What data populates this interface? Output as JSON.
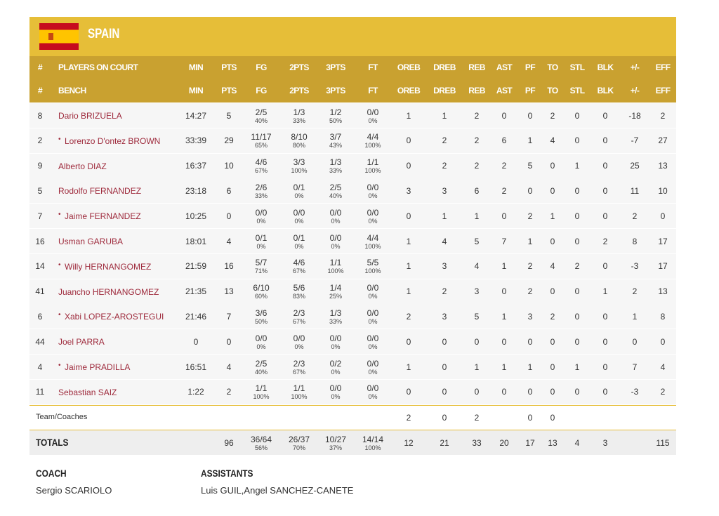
{
  "team": {
    "name": "SPAIN"
  },
  "header_rows": [
    {
      "num": "#",
      "name": "PLAYERS ON COURT",
      "min": "MIN",
      "pts": "PTS",
      "fg": "FG",
      "p2": "2PTS",
      "p3": "3PTS",
      "ft": "FT",
      "oreb": "OREB",
      "dreb": "DREB",
      "reb": "REB",
      "ast": "AST",
      "pf": "PF",
      "to": "TO",
      "stl": "STL",
      "blk": "BLK",
      "pm": "+/-",
      "eff": "EFF"
    },
    {
      "num": "#",
      "name": "BENCH",
      "min": "MIN",
      "pts": "PTS",
      "fg": "FG",
      "p2": "2PTS",
      "p3": "3PTS",
      "ft": "FT",
      "oreb": "OREB",
      "dreb": "DREB",
      "reb": "REB",
      "ast": "AST",
      "pf": "PF",
      "to": "TO",
      "stl": "STL",
      "blk": "BLK",
      "pm": "+/-",
      "eff": "EFF"
    }
  ],
  "players": [
    {
      "num": "8",
      "name": "Dario BRIZUELA",
      "min": "14:27",
      "pts": "5",
      "fg": {
        "made": "2/5",
        "pct": "40%"
      },
      "p2": {
        "made": "1/3",
        "pct": "33%"
      },
      "p3": {
        "made": "1/2",
        "pct": "50%"
      },
      "ft": {
        "made": "0/0",
        "pct": "0%"
      },
      "oreb": "1",
      "dreb": "1",
      "reb": "2",
      "ast": "0",
      "pf": "0",
      "to": "2",
      "stl": "0",
      "blk": "0",
      "pm": "-18",
      "eff": "2"
    },
    {
      "num": "2",
      "starter": "•",
      "name": "Lorenzo D'ontez BROWN",
      "min": "33:39",
      "pts": "29",
      "fg": {
        "made": "11/17",
        "pct": "65%"
      },
      "p2": {
        "made": "8/10",
        "pct": "80%"
      },
      "p3": {
        "made": "3/7",
        "pct": "43%"
      },
      "ft": {
        "made": "4/4",
        "pct": "100%"
      },
      "oreb": "0",
      "dreb": "2",
      "reb": "2",
      "ast": "6",
      "pf": "1",
      "to": "4",
      "stl": "0",
      "blk": "0",
      "pm": "-7",
      "eff": "27"
    },
    {
      "num": "9",
      "name": "Alberto DIAZ",
      "min": "16:37",
      "pts": "10",
      "fg": {
        "made": "4/6",
        "pct": "67%"
      },
      "p2": {
        "made": "3/3",
        "pct": "100%"
      },
      "p3": {
        "made": "1/3",
        "pct": "33%"
      },
      "ft": {
        "made": "1/1",
        "pct": "100%"
      },
      "oreb": "0",
      "dreb": "2",
      "reb": "2",
      "ast": "2",
      "pf": "5",
      "to": "0",
      "stl": "1",
      "blk": "0",
      "pm": "25",
      "eff": "13"
    },
    {
      "num": "5",
      "name": "Rodolfo FERNANDEZ",
      "min": "23:18",
      "pts": "6",
      "fg": {
        "made": "2/6",
        "pct": "33%"
      },
      "p2": {
        "made": "0/1",
        "pct": "0%"
      },
      "p3": {
        "made": "2/5",
        "pct": "40%"
      },
      "ft": {
        "made": "0/0",
        "pct": "0%"
      },
      "oreb": "3",
      "dreb": "3",
      "reb": "6",
      "ast": "2",
      "pf": "0",
      "to": "0",
      "stl": "0",
      "blk": "0",
      "pm": "11",
      "eff": "10"
    },
    {
      "num": "7",
      "starter": "•",
      "name": "Jaime FERNANDEZ",
      "min": "10:25",
      "pts": "0",
      "fg": {
        "made": "0/0",
        "pct": "0%"
      },
      "p2": {
        "made": "0/0",
        "pct": "0%"
      },
      "p3": {
        "made": "0/0",
        "pct": "0%"
      },
      "ft": {
        "made": "0/0",
        "pct": "0%"
      },
      "oreb": "0",
      "dreb": "1",
      "reb": "1",
      "ast": "0",
      "pf": "2",
      "to": "1",
      "stl": "0",
      "blk": "0",
      "pm": "2",
      "eff": "0"
    },
    {
      "num": "16",
      "name": "Usman GARUBA",
      "min": "18:01",
      "pts": "4",
      "fg": {
        "made": "0/1",
        "pct": "0%"
      },
      "p2": {
        "made": "0/1",
        "pct": "0%"
      },
      "p3": {
        "made": "0/0",
        "pct": "0%"
      },
      "ft": {
        "made": "4/4",
        "pct": "100%"
      },
      "oreb": "1",
      "dreb": "4",
      "reb": "5",
      "ast": "7",
      "pf": "1",
      "to": "0",
      "stl": "0",
      "blk": "2",
      "pm": "8",
      "eff": "17"
    },
    {
      "num": "14",
      "starter": "•",
      "name": "Willy HERNANGOMEZ",
      "min": "21:59",
      "pts": "16",
      "fg": {
        "made": "5/7",
        "pct": "71%"
      },
      "p2": {
        "made": "4/6",
        "pct": "67%"
      },
      "p3": {
        "made": "1/1",
        "pct": "100%"
      },
      "ft": {
        "made": "5/5",
        "pct": "100%"
      },
      "oreb": "1",
      "dreb": "3",
      "reb": "4",
      "ast": "1",
      "pf": "2",
      "to": "4",
      "stl": "2",
      "blk": "0",
      "pm": "-3",
      "eff": "17"
    },
    {
      "num": "41",
      "name": "Juancho HERNANGOMEZ",
      "min": "21:35",
      "pts": "13",
      "fg": {
        "made": "6/10",
        "pct": "60%"
      },
      "p2": {
        "made": "5/6",
        "pct": "83%"
      },
      "p3": {
        "made": "1/4",
        "pct": "25%"
      },
      "ft": {
        "made": "0/0",
        "pct": "0%"
      },
      "oreb": "1",
      "dreb": "2",
      "reb": "3",
      "ast": "0",
      "pf": "2",
      "to": "0",
      "stl": "0",
      "blk": "1",
      "pm": "2",
      "eff": "13"
    },
    {
      "num": "6",
      "starter": "•",
      "name": "Xabi LOPEZ-AROSTEGUI",
      "min": "21:46",
      "pts": "7",
      "fg": {
        "made": "3/6",
        "pct": "50%"
      },
      "p2": {
        "made": "2/3",
        "pct": "67%"
      },
      "p3": {
        "made": "1/3",
        "pct": "33%"
      },
      "ft": {
        "made": "0/0",
        "pct": "0%"
      },
      "oreb": "2",
      "dreb": "3",
      "reb": "5",
      "ast": "1",
      "pf": "3",
      "to": "2",
      "stl": "0",
      "blk": "0",
      "pm": "1",
      "eff": "8"
    },
    {
      "num": "44",
      "name": "Joel PARRA",
      "min": "0",
      "pts": "0",
      "fg": {
        "made": "0/0",
        "pct": "0%"
      },
      "p2": {
        "made": "0/0",
        "pct": "0%"
      },
      "p3": {
        "made": "0/0",
        "pct": "0%"
      },
      "ft": {
        "made": "0/0",
        "pct": "0%"
      },
      "oreb": "0",
      "dreb": "0",
      "reb": "0",
      "ast": "0",
      "pf": "0",
      "to": "0",
      "stl": "0",
      "blk": "0",
      "pm": "0",
      "eff": "0"
    },
    {
      "num": "4",
      "starter": "•",
      "name": "Jaime PRADILLA",
      "min": "16:51",
      "pts": "4",
      "fg": {
        "made": "2/5",
        "pct": "40%"
      },
      "p2": {
        "made": "2/3",
        "pct": "67%"
      },
      "p3": {
        "made": "0/2",
        "pct": "0%"
      },
      "ft": {
        "made": "0/0",
        "pct": "0%"
      },
      "oreb": "1",
      "dreb": "0",
      "reb": "1",
      "ast": "1",
      "pf": "1",
      "to": "0",
      "stl": "1",
      "blk": "0",
      "pm": "7",
      "eff": "4"
    },
    {
      "num": "11",
      "name": "Sebastian SAIZ",
      "min": "1:22",
      "pts": "2",
      "fg": {
        "made": "1/1",
        "pct": "100%"
      },
      "p2": {
        "made": "1/1",
        "pct": "100%"
      },
      "p3": {
        "made": "0/0",
        "pct": "0%"
      },
      "ft": {
        "made": "0/0",
        "pct": "0%"
      },
      "oreb": "0",
      "dreb": "0",
      "reb": "0",
      "ast": "0",
      "pf": "0",
      "to": "0",
      "stl": "0",
      "blk": "0",
      "pm": "-3",
      "eff": "2"
    }
  ],
  "team_row": {
    "name": "Team/Coaches",
    "oreb": "2",
    "dreb": "0",
    "reb": "2",
    "pf": "0",
    "to": "0"
  },
  "totals": {
    "name": "TOTALS",
    "pts": "96",
    "fg": {
      "made": "36/64",
      "pct": "56%"
    },
    "p2": {
      "made": "26/37",
      "pct": "70%"
    },
    "p3": {
      "made": "10/27",
      "pct": "37%"
    },
    "ft": {
      "made": "14/14",
      "pct": "100%"
    },
    "oreb": "12",
    "dreb": "21",
    "reb": "33",
    "ast": "20",
    "pf": "17",
    "to": "13",
    "stl": "4",
    "blk": "3",
    "eff": "115"
  },
  "staff": {
    "coach_label": "COACH",
    "coach": "Sergio SCARIOLO",
    "assistants_label": "ASSISTANTS",
    "assistants": "Luis GUIL,Angel SANCHEZ-CANETE"
  }
}
